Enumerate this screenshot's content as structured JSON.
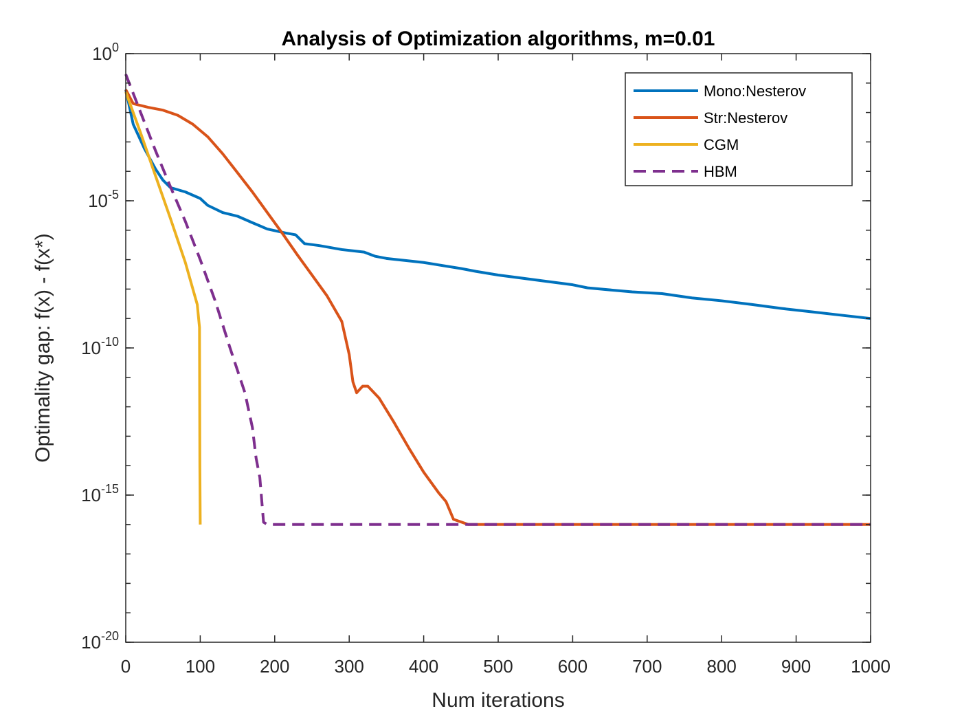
{
  "chart_data": {
    "type": "line",
    "title": "Analysis of Optimization algorithms, m=0.01",
    "xlabel": "Num iterations",
    "ylabel": "Optimality gap: f(x) - f(x*)",
    "xlim": [
      0,
      1000
    ],
    "ylim": [
      1e-20,
      1
    ],
    "yscale": "log",
    "xticks": [
      0,
      100,
      200,
      300,
      400,
      500,
      600,
      700,
      800,
      900,
      1000
    ],
    "yticks": [
      {
        "base": "10",
        "exp": "0",
        "value": 1
      },
      {
        "base": "10",
        "exp": "-5",
        "value": 1e-05
      },
      {
        "base": "10",
        "exp": "-10",
        "value": 1e-10
      },
      {
        "base": "10",
        "exp": "-15",
        "value": 1e-15
      },
      {
        "base": "10",
        "exp": "-20",
        "value": 1e-20
      }
    ],
    "grid": false,
    "legend_position": "top-right",
    "series": [
      {
        "name": "Mono:Nesterov",
        "color": "#0072BD",
        "dash": "solid",
        "points": [
          [
            0,
            0.06
          ],
          [
            10,
            0.004
          ],
          [
            25,
            0.0006
          ],
          [
            40,
            0.00012
          ],
          [
            50,
            5e-05
          ],
          [
            60,
            2.8e-05
          ],
          [
            80,
            2e-05
          ],
          [
            100,
            1.2e-05
          ],
          [
            110,
            7e-06
          ],
          [
            130,
            4e-06
          ],
          [
            150,
            3e-06
          ],
          [
            170,
            1.8e-06
          ],
          [
            190,
            1.1e-06
          ],
          [
            215,
            8e-07
          ],
          [
            228,
            7e-07
          ],
          [
            240,
            3.5e-07
          ],
          [
            260,
            3e-07
          ],
          [
            290,
            2.2e-07
          ],
          [
            320,
            1.8e-07
          ],
          [
            335,
            1.3e-07
          ],
          [
            350,
            1.1e-07
          ],
          [
            400,
            8e-08
          ],
          [
            450,
            5e-08
          ],
          [
            470,
            4e-08
          ],
          [
            500,
            3e-08
          ],
          [
            560,
            1.9e-08
          ],
          [
            600,
            1.4e-08
          ],
          [
            620,
            1.1e-08
          ],
          [
            680,
            8e-09
          ],
          [
            720,
            7e-09
          ],
          [
            760,
            5e-09
          ],
          [
            800,
            4e-09
          ],
          [
            840,
            3e-09
          ],
          [
            880,
            2.2e-09
          ],
          [
            920,
            1.7e-09
          ],
          [
            960,
            1.3e-09
          ],
          [
            1000,
            1e-09
          ]
        ]
      },
      {
        "name": "Str:Nesterov",
        "color": "#D95319",
        "dash": "solid",
        "points": [
          [
            0,
            0.06
          ],
          [
            10,
            0.02
          ],
          [
            30,
            0.015
          ],
          [
            50,
            0.012
          ],
          [
            70,
            0.008
          ],
          [
            90,
            0.004
          ],
          [
            110,
            0.0015
          ],
          [
            130,
            0.0004
          ],
          [
            150,
            9e-05
          ],
          [
            170,
            2e-05
          ],
          [
            190,
            4e-06
          ],
          [
            210,
            8e-07
          ],
          [
            230,
            1.5e-07
          ],
          [
            250,
            3e-08
          ],
          [
            270,
            6e-09
          ],
          [
            290,
            8e-10
          ],
          [
            300,
            6e-11
          ],
          [
            305,
            7e-12
          ],
          [
            310,
            3e-12
          ],
          [
            318,
            5e-12
          ],
          [
            325,
            5e-12
          ],
          [
            340,
            2e-12
          ],
          [
            360,
            3e-13
          ],
          [
            380,
            4e-14
          ],
          [
            400,
            6e-15
          ],
          [
            420,
            1.2e-15
          ],
          [
            430,
            6e-16
          ],
          [
            440,
            1.5e-16
          ],
          [
            460,
            1e-16
          ],
          [
            1000,
            1e-16
          ]
        ]
      },
      {
        "name": "CGM",
        "color": "#EDB120",
        "dash": "solid",
        "points": [
          [
            0,
            0.05
          ],
          [
            20,
            0.002
          ],
          [
            40,
            7e-05
          ],
          [
            60,
            2.5e-06
          ],
          [
            80,
            8e-08
          ],
          [
            96,
            3e-09
          ],
          [
            99,
            5e-10
          ],
          [
            99.5,
            1e-14
          ],
          [
            100,
            1e-16
          ]
        ]
      },
      {
        "name": "HBM",
        "color": "#7E2F8E",
        "dash": "dashed",
        "points": [
          [
            0,
            0.2
          ],
          [
            20,
            0.01
          ],
          [
            40,
            0.0005
          ],
          [
            60,
            3e-05
          ],
          [
            80,
            2e-06
          ],
          [
            100,
            1e-07
          ],
          [
            120,
            4e-09
          ],
          [
            140,
            1e-10
          ],
          [
            160,
            3e-12
          ],
          [
            170,
            2e-13
          ],
          [
            175,
            1.8e-14
          ],
          [
            180,
            4e-15
          ],
          [
            185,
            1.2e-16
          ],
          [
            190,
            1e-16
          ],
          [
            1000,
            1e-16
          ]
        ]
      }
    ]
  }
}
